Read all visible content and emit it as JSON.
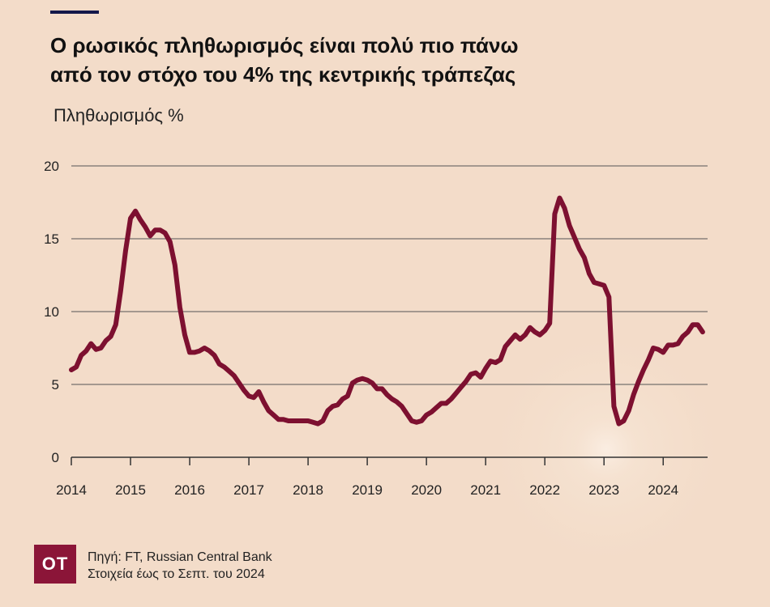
{
  "header": {
    "title_line1": "Ο ρωσικός πληθωρισμός είναι πολύ πιο πάνω",
    "title_line2": "από τον στόχο του 4% της κεντρικής τράπεζας"
  },
  "footer": {
    "logo_text": "OT",
    "source_line1": "Πηγή: FT, Russian Central Bank",
    "source_line2": "Στοιχεία έως το Σεπτ. του 2024"
  },
  "colors": {
    "background": "#f3dcc9",
    "line": "#7d1030",
    "accent": "#13184a",
    "logo": "#8b1538"
  },
  "chart_data": {
    "type": "line",
    "ylabel": "Πληθωρισμός %",
    "xlabel": "",
    "xlim": [
      2014.0,
      2024.75
    ],
    "ylim": [
      0,
      20
    ],
    "yticks": [
      0,
      5,
      10,
      15,
      20
    ],
    "xticks": [
      "2014",
      "2015",
      "2016",
      "2017",
      "2018",
      "2019",
      "2020",
      "2021",
      "2022",
      "2023",
      "2024"
    ],
    "grid": "horizontal",
    "series": [
      {
        "x": [
          2014.0,
          2014.083,
          2014.167,
          2014.25,
          2014.333,
          2014.417,
          2014.5,
          2014.583,
          2014.667,
          2014.75,
          2014.833,
          2014.917,
          2015.0,
          2015.083,
          2015.167,
          2015.25,
          2015.333,
          2015.417,
          2015.5,
          2015.583,
          2015.667,
          2015.75,
          2015.833,
          2015.917,
          2016.0,
          2016.083,
          2016.167,
          2016.25,
          2016.333,
          2016.417,
          2016.5,
          2016.583,
          2016.667,
          2016.75,
          2016.833,
          2016.917,
          2017.0,
          2017.083,
          2017.167,
          2017.25,
          2017.333,
          2017.417,
          2017.5,
          2017.583,
          2017.667,
          2017.75,
          2017.833,
          2017.917,
          2018.0,
          2018.083,
          2018.167,
          2018.25,
          2018.333,
          2018.417,
          2018.5,
          2018.583,
          2018.667,
          2018.75,
          2018.833,
          2018.917,
          2019.0,
          2019.083,
          2019.167,
          2019.25,
          2019.333,
          2019.417,
          2019.5,
          2019.583,
          2019.667,
          2019.75,
          2019.833,
          2019.917,
          2020.0,
          2020.083,
          2020.167,
          2020.25,
          2020.333,
          2020.417,
          2020.5,
          2020.583,
          2020.667,
          2020.75,
          2020.833,
          2020.917,
          2021.0,
          2021.083,
          2021.167,
          2021.25,
          2021.333,
          2021.417,
          2021.5,
          2021.583,
          2021.667,
          2021.75,
          2021.833,
          2021.917,
          2022.0,
          2022.083,
          2022.167,
          2022.25,
          2022.333,
          2022.417,
          2022.5,
          2022.583,
          2022.667,
          2022.75,
          2022.833,
          2022.917,
          2023.0,
          2023.083,
          2023.167,
          2023.25,
          2023.333,
          2023.417,
          2023.5,
          2023.583,
          2023.667,
          2023.75,
          2023.833,
          2023.917,
          2024.0,
          2024.083,
          2024.167,
          2024.25,
          2024.333,
          2024.417,
          2024.5,
          2024.583,
          2024.667
        ],
        "values": [
          6.0,
          6.2,
          7.0,
          7.3,
          7.8,
          7.4,
          7.5,
          8.0,
          8.3,
          9.1,
          11.4,
          14.2,
          16.4,
          16.9,
          16.3,
          15.8,
          15.2,
          15.6,
          15.6,
          15.4,
          14.8,
          13.2,
          10.3,
          8.4,
          7.2,
          7.2,
          7.3,
          7.5,
          7.3,
          7.0,
          6.4,
          6.2,
          5.9,
          5.6,
          5.1,
          4.6,
          4.2,
          4.1,
          4.5,
          3.8,
          3.2,
          2.9,
          2.6,
          2.6,
          2.5,
          2.5,
          2.5,
          2.5,
          2.5,
          2.4,
          2.3,
          2.5,
          3.2,
          3.5,
          3.6,
          4.0,
          4.2,
          5.1,
          5.3,
          5.4,
          5.3,
          5.1,
          4.7,
          4.7,
          4.3,
          4.0,
          3.8,
          3.5,
          3.0,
          2.5,
          2.4,
          2.5,
          2.9,
          3.1,
          3.4,
          3.7,
          3.7,
          4.0,
          4.4,
          4.8,
          5.2,
          5.7,
          5.8,
          5.5,
          6.1,
          6.6,
          6.5,
          6.7,
          7.6,
          8.0,
          8.4,
          8.1,
          8.4,
          8.9,
          8.6,
          8.4,
          8.7,
          9.2,
          16.7,
          17.8,
          17.1,
          15.9,
          15.1,
          14.3,
          13.7,
          12.6,
          12.0,
          11.9,
          11.8,
          11.0,
          3.5,
          2.3,
          2.5,
          3.2,
          4.3,
          5.2,
          6.0,
          6.7,
          7.5,
          7.4,
          7.2,
          7.7,
          7.7,
          7.8,
          8.3,
          8.6,
          9.1,
          9.1,
          8.6
        ]
      }
    ]
  }
}
